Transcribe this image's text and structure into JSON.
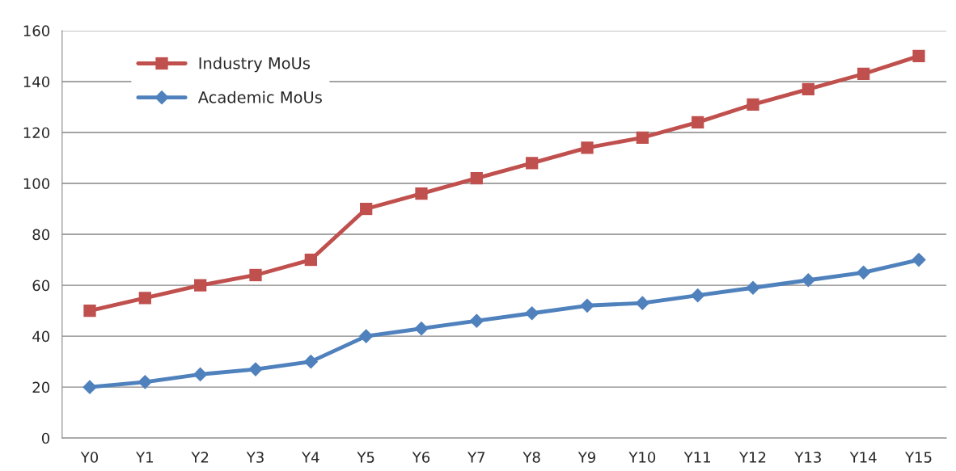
{
  "chart_data": {
    "type": "line",
    "categories": [
      "Y0",
      "Y1",
      "Y2",
      "Y3",
      "Y4",
      "Y5",
      "Y6",
      "Y7",
      "Y8",
      "Y9",
      "Y10",
      "Y11",
      "Y12",
      "Y13",
      "Y14",
      "Y15"
    ],
    "series": [
      {
        "name": "Industry MoUs",
        "color": "#c0504d",
        "marker": "square",
        "values": [
          50,
          55,
          60,
          64,
          70,
          90,
          96,
          102,
          108,
          114,
          118,
          124,
          131,
          137,
          143,
          150
        ]
      },
      {
        "name": "Academic MoUs",
        "color": "#4f81bd",
        "marker": "diamond",
        "values": [
          20,
          22,
          25,
          27,
          30,
          40,
          43,
          46,
          49,
          52,
          53,
          56,
          59,
          62,
          65,
          70
        ]
      }
    ],
    "ylim": [
      0,
      160
    ],
    "yticks": [
      0,
      20,
      40,
      60,
      80,
      100,
      120,
      140,
      160
    ],
    "grid": "y",
    "legend": "top left",
    "line_style": "solid"
  }
}
